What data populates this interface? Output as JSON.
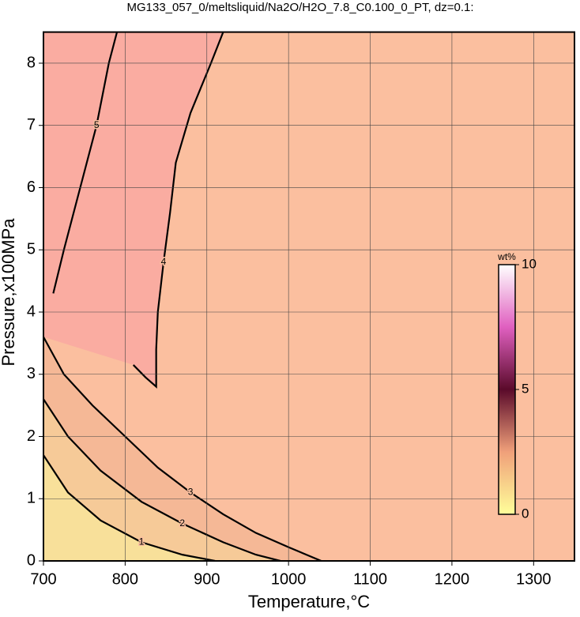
{
  "chart_data": {
    "type": "contour",
    "title": "MG133_057_0/meltsliquid/Na2O/H2O_7.8_C0.100_0_PT, dz=0.1:",
    "x_label": "Temperature,°C",
    "y_label": "Pressure,x100MPa",
    "xlim": [
      700,
      1350
    ],
    "ylim": [
      0,
      8.5
    ],
    "xticks": [
      700,
      800,
      900,
      1000,
      1100,
      1200,
      1300
    ],
    "yticks": [
      0,
      1,
      2,
      3,
      4,
      5,
      6,
      7,
      8
    ],
    "grid": true,
    "background": "#fbbf9f",
    "contours": [
      {
        "level": 5,
        "fill": "#f7a2a2",
        "x": [
          712,
          725,
          745,
          765,
          780,
          790
        ],
        "y": [
          4.3,
          5.0,
          6.0,
          7.0,
          8.0,
          8.5
        ]
      },
      {
        "level": 4,
        "fill": "#faaca1",
        "x": [
          920,
          905,
          880,
          862,
          855,
          847,
          840,
          838,
          838,
          825,
          810
        ],
        "y": [
          8.5,
          8.0,
          7.2,
          6.4,
          5.6,
          4.8,
          4.0,
          3.4,
          2.8,
          2.95,
          3.15
        ]
      },
      {
        "level": 3,
        "fill": "#f5b896",
        "x": [
          700,
          725,
          760,
          800,
          840,
          880,
          920,
          960,
          1000,
          1040
        ],
        "y": [
          3.6,
          3.0,
          2.5,
          2.0,
          1.5,
          1.1,
          0.75,
          0.45,
          0.22,
          0.0
        ]
      },
      {
        "level": 2,
        "fill": "#f6ca98",
        "x": [
          700,
          730,
          770,
          820,
          870,
          920,
          960,
          990
        ],
        "y": [
          2.6,
          2.0,
          1.45,
          0.95,
          0.6,
          0.3,
          0.1,
          0.0
        ]
      },
      {
        "level": 1,
        "fill": "#f8e09a",
        "x": [
          700,
          730,
          770,
          820,
          870,
          910
        ],
        "y": [
          1.7,
          1.1,
          0.65,
          0.3,
          0.1,
          0.0
        ]
      }
    ],
    "colorbar": {
      "label": "wt%",
      "lim": [
        0,
        10
      ],
      "ticks": [
        0,
        5,
        10
      ],
      "colors": [
        "#ffff9a",
        "#f0a07a",
        "#5a0a2a",
        "#e060c0",
        "#ffffff"
      ]
    }
  }
}
